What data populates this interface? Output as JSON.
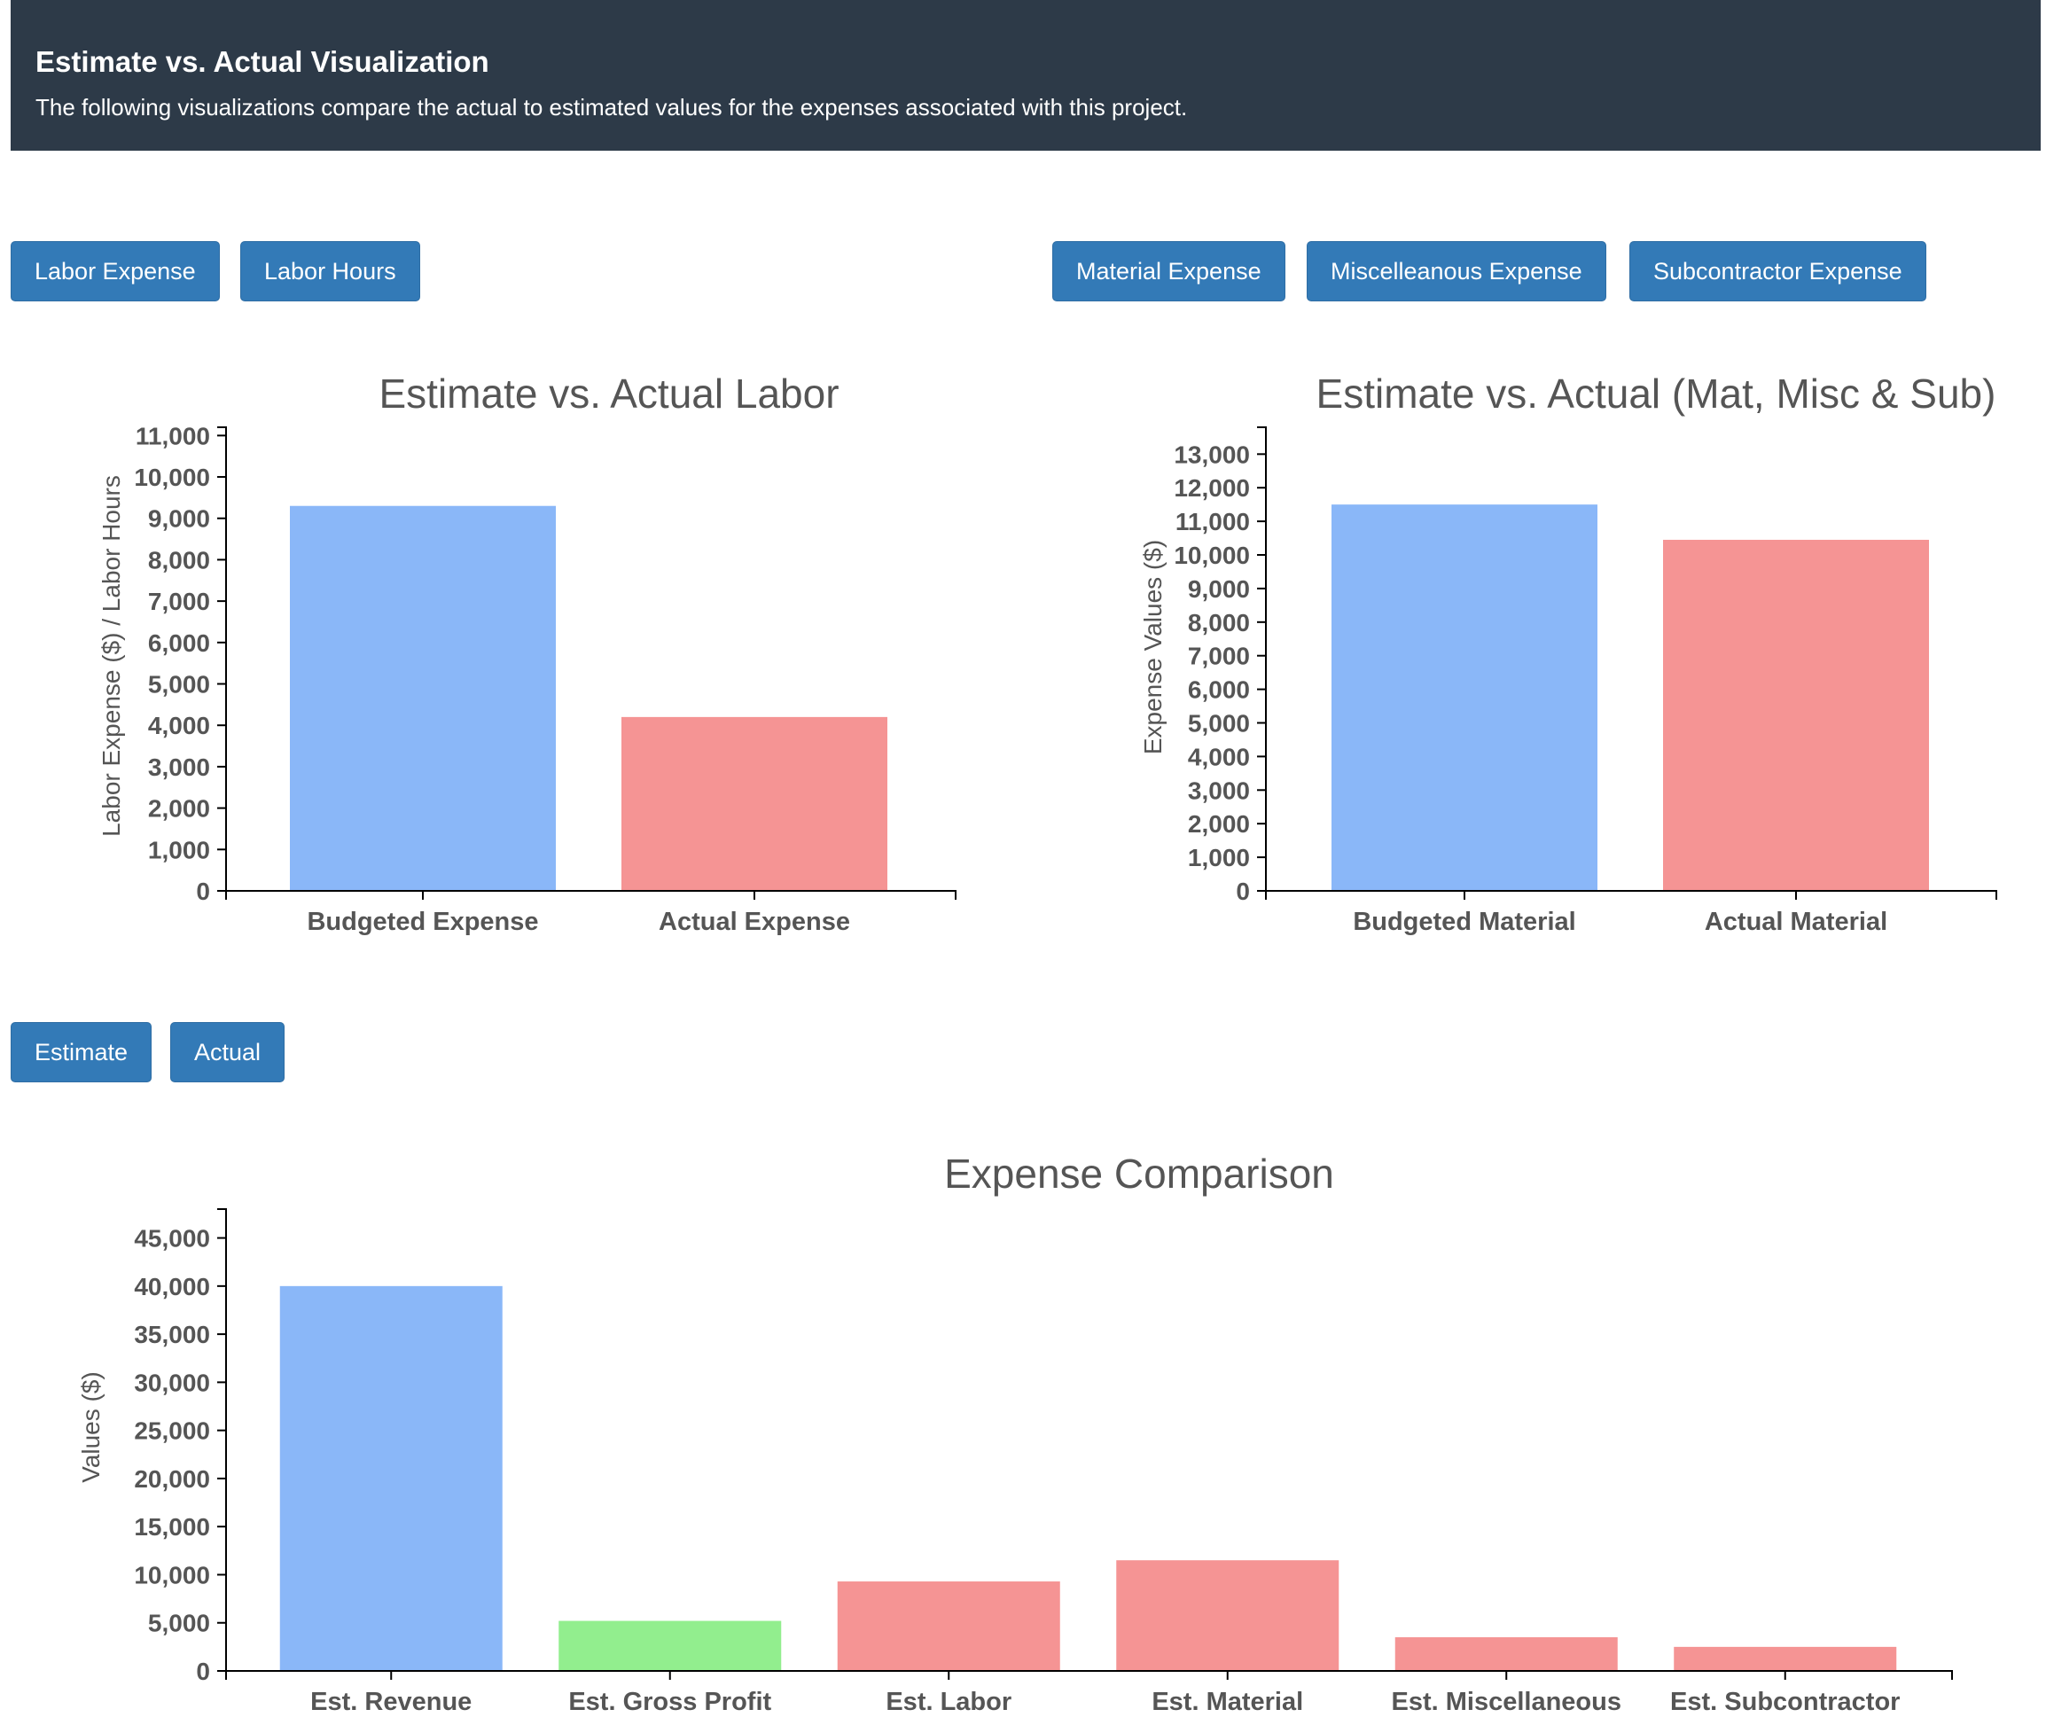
{
  "header": {
    "title": "Estimate vs. Actual Visualization",
    "subtitle": "The following visualizations compare the actual to estimated values for the expenses associated with this project."
  },
  "buttons": {
    "labor_expense": "Labor Expense",
    "labor_hours": "Labor Hours",
    "material_expense": "Material Expense",
    "misc_expense": "Miscelleanous Expense",
    "sub_expense": "Subcontractor Expense",
    "estimate": "Estimate",
    "actual": "Actual"
  },
  "colors": {
    "blue": "#8ab7f8",
    "red": "#f59494",
    "green": "#92ee8e"
  },
  "chart_data": [
    {
      "type": "bar",
      "title": "Estimate vs. Actual Labor",
      "ylabel": "Labor Expense ($) / Labor Hours",
      "categories": [
        "Budgeted Expense",
        "Actual Expense"
      ],
      "values": [
        9300,
        4200
      ],
      "colors": [
        "#8ab7f8",
        "#f59494"
      ],
      "ylim": [
        0,
        11200
      ],
      "yticks": [
        0,
        1000,
        2000,
        3000,
        4000,
        5000,
        6000,
        7000,
        8000,
        9000,
        10000,
        11000
      ],
      "grid": false
    },
    {
      "type": "bar",
      "title": "Estimate vs. Actual (Mat, Misc & Sub)",
      "ylabel": "Expense Values ($)",
      "categories": [
        "Budgeted Material",
        "Actual Material"
      ],
      "values": [
        11500,
        10450
      ],
      "colors": [
        "#8ab7f8",
        "#f59494"
      ],
      "ylim": [
        0,
        13800
      ],
      "yticks": [
        0,
        1000,
        2000,
        3000,
        4000,
        5000,
        6000,
        7000,
        8000,
        9000,
        10000,
        11000,
        12000,
        13000
      ],
      "grid": false
    },
    {
      "type": "bar",
      "title": "Expense Comparison",
      "ylabel": "Values ($)",
      "categories": [
        "Est. Revenue",
        "Est. Gross Profit",
        "Est. Labor",
        "Est. Material",
        "Est. Miscellaneous",
        "Est. Subcontractor"
      ],
      "values": [
        40000,
        5200,
        9300,
        11500,
        3500,
        2500
      ],
      "colors": [
        "#8ab7f8",
        "#92ee8e",
        "#f59494",
        "#f59494",
        "#f59494",
        "#f59494"
      ],
      "ylim": [
        0,
        48000
      ],
      "yticks": [
        0,
        5000,
        10000,
        15000,
        20000,
        25000,
        30000,
        35000,
        40000,
        45000
      ],
      "grid": false
    }
  ]
}
